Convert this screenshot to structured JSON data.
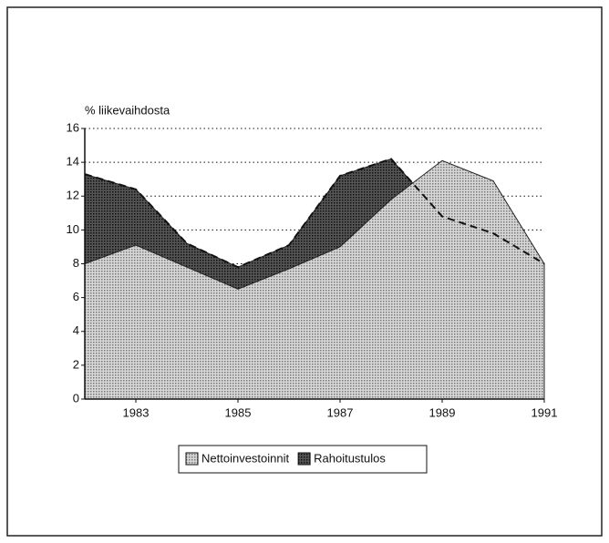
{
  "chart_data": {
    "type": "area",
    "y_label": "% liikevaihdosta",
    "x": [
      1982,
      1983,
      1984,
      1985,
      1986,
      1987,
      1988,
      1989,
      1990,
      1991
    ],
    "series": [
      {
        "name": "Nettoinvestoinnit",
        "color": "#a8a8a8",
        "values": [
          8.0,
          9.1,
          7.8,
          6.5,
          7.7,
          9.0,
          11.8,
          14.1,
          12.9,
          8.0
        ]
      },
      {
        "name": "Rahoitustulos",
        "color": "#383838",
        "values": [
          13.3,
          12.4,
          9.2,
          7.8,
          9.1,
          13.2,
          14.2,
          10.8,
          9.8,
          8.0
        ]
      }
    ],
    "xlim": [
      1982,
      1991
    ],
    "xticks": [
      1983,
      1985,
      1987,
      1989,
      1991
    ],
    "ylim": [
      0,
      16
    ],
    "yticks": [
      0,
      2,
      4,
      6,
      8,
      10,
      12,
      14,
      16
    ],
    "grid": true
  }
}
